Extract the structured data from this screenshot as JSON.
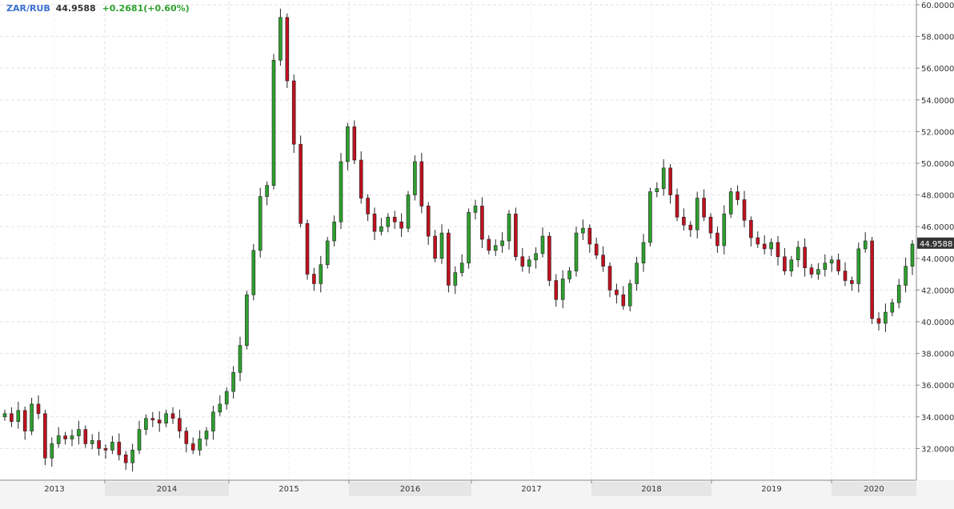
{
  "header": {
    "symbol": "ZAR/RUB",
    "last": "44.9588",
    "change": "+0.2681(+0.60%)"
  },
  "colors": {
    "up": "#2ea02e",
    "down": "#c0111f",
    "grid": "#e3e3e3",
    "axis": "#888888",
    "year_band": "#e6e6e6",
    "last_label_bg": "#333333"
  },
  "chart_data": {
    "type": "candlestick",
    "ylim": [
      30.0,
      60.2
    ],
    "y_ticks": [
      "32.0000",
      "34.0000",
      "36.0000",
      "38.0000",
      "40.0000",
      "42.0000",
      "44.0000",
      "46.0000",
      "48.0000",
      "50.0000",
      "52.0000",
      "54.0000",
      "56.0000",
      "58.0000",
      "60.0000"
    ],
    "x_labels": [
      "2013",
      "2014",
      "2015",
      "2016",
      "2017",
      "2018",
      "2019",
      "2020"
    ],
    "last_value_label": "44.9588",
    "grid": true,
    "series": [
      {
        "values": [
          34.2,
          33.7,
          34.4,
          33.1,
          34.8,
          34.2,
          31.4,
          32.3,
          32.8,
          32.6,
          32.8,
          33.2,
          32.3,
          32.5,
          32.0,
          31.9,
          32.4,
          31.6,
          31.1,
          31.9,
          33.2,
          33.9,
          33.8,
          33.6,
          34.2,
          33.9,
          33.1,
          32.3,
          31.9,
          32.6,
          33.1,
          34.3,
          34.8,
          35.6,
          36.8,
          38.5,
          41.7,
          44.5,
          47.9,
          48.6,
          56.5,
          59.2,
          55.2,
          51.2,
          46.2,
          43.0,
          42.4,
          43.6,
          45.1,
          46.3,
          50.1,
          52.3,
          50.2,
          47.8,
          46.8,
          45.7,
          46.0,
          46.6,
          46.3,
          45.9,
          48.0,
          50.1,
          47.3,
          45.4,
          44.0,
          45.6,
          42.3,
          43.1,
          43.7,
          46.9,
          47.3,
          45.2,
          44.5,
          44.8,
          45.1,
          46.8,
          44.1,
          43.5,
          43.9,
          44.3,
          45.4,
          42.6,
          41.4,
          42.7,
          43.2,
          45.6,
          45.9,
          44.9,
          44.2,
          43.5,
          42.0,
          41.7,
          41.0,
          42.4,
          43.7,
          45.0,
          48.2,
          48.4,
          49.7,
          48.0,
          46.6,
          46.1,
          45.8,
          47.8,
          46.6,
          45.6,
          44.8,
          46.8,
          48.2,
          47.7,
          46.4,
          45.3,
          44.9,
          44.6,
          45.0,
          44.1,
          43.2,
          43.9,
          44.7,
          43.4,
          43.0,
          43.3,
          43.7,
          43.9,
          43.2,
          42.6,
          42.4,
          44.6,
          45.1,
          40.2,
          39.9,
          40.6,
          41.2,
          42.3,
          43.5,
          44.9
        ]
      }
    ]
  }
}
